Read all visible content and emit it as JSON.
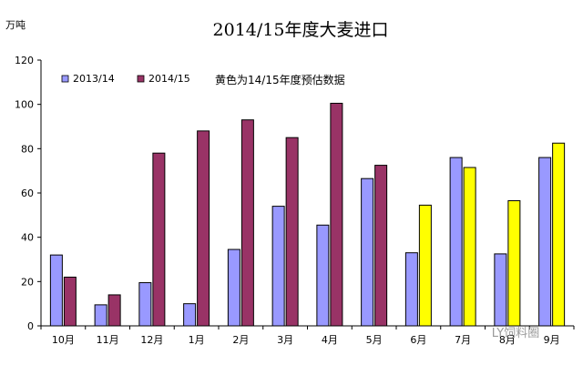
{
  "chart_data": {
    "type": "bar",
    "title": "2014/15年度大麦进口",
    "unit": "万吨",
    "ylim": [
      0,
      120
    ],
    "yticks": [
      0,
      20,
      40,
      60,
      80,
      100,
      120
    ],
    "categories": [
      "10月",
      "11月",
      "12月",
      "1月",
      "2月",
      "3月",
      "4月",
      "5月",
      "6月",
      "7月",
      "8月",
      "9月"
    ],
    "series": [
      {
        "name": "2013/14",
        "color": "#9999ff",
        "values": [
          32,
          9.5,
          19.5,
          10,
          34.5,
          54,
          45.5,
          66.5,
          33,
          76,
          32.5,
          76
        ]
      },
      {
        "name": "2014/15",
        "color": "#993366",
        "values": [
          22,
          14,
          78,
          88,
          93,
          85,
          100.5,
          72.5,
          54.5,
          71.5,
          56.5,
          82.5
        ]
      }
    ],
    "highlight_color": "#ffff00",
    "highlight_series": 1,
    "highlight_from_index": 8,
    "note": "黄色为14/15年度预估数据",
    "legend_position": "top-left",
    "grid": false
  },
  "watermark": "LY饲料圈"
}
